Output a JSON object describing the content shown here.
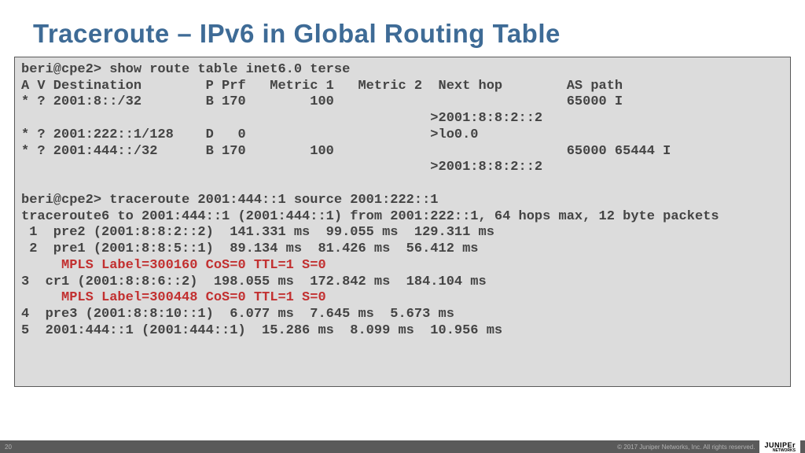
{
  "slide": {
    "title": "Traceroute – IPv6 in Global Routing Table"
  },
  "terminal": {
    "cmd1": "beri@cpe2> show route table inet6.0 terse",
    "header": "A V Destination        P Prf   Metric 1   Metric 2  Next hop        AS path",
    "r1": "* ? 2001:8::/32        B 170        100                             65000 I",
    "r1b": "                                                   >2001:8:8:2::2",
    "r2": "* ? 2001:222::1/128    D   0                       >lo0.0",
    "r3": "* ? 2001:444::/32      B 170        100                             65000 65444 I",
    "r3b": "                                                   >2001:8:8:2::2",
    "blank": "",
    "cmd2": "beri@cpe2> traceroute 2001:444::1 source 2001:222::1",
    "trhdr": "traceroute6 to 2001:444::1 (2001:444::1) from 2001:222::1, 64 hops max, 12 byte packets",
    "h1": " 1  pre2 (2001:8:8:2::2)  141.331 ms  99.055 ms  129.311 ms",
    "h2": " 2  pre1 (2001:8:8:5::1)  89.134 ms  81.426 ms  56.412 ms",
    "m1": "     MPLS Label=300160 CoS=0 TTL=1 S=0",
    "h3": "3  cr1 (2001:8:8:6::2)  198.055 ms  172.842 ms  184.104 ms",
    "m2": "     MPLS Label=300448 CoS=0 TTL=1 S=0",
    "h4": "4  pre3 (2001:8:8:10::1)  6.077 ms  7.645 ms  5.673 ms",
    "h5": "5  2001:444::1 (2001:444::1)  15.286 ms  8.099 ms  10.956 ms"
  },
  "footer": {
    "page": "20",
    "copyright": "© 2017 Juniper Networks, Inc. All rights reserved.",
    "logo": "JUNIPEr",
    "logosub": "NETWORKS"
  },
  "colors": {
    "title": "#3e6b96",
    "terminal_bg": "#dcdcdc",
    "terminal_border": "#5a5a5a",
    "text": "#444444",
    "mpls": "#c23030",
    "footer_bg": "#5a5a5a"
  }
}
